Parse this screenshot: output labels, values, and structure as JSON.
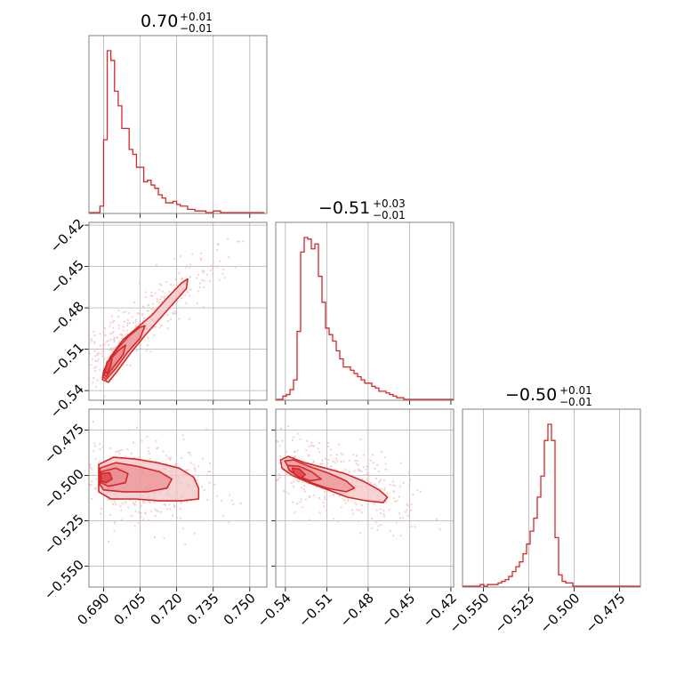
{
  "colors": {
    "series": "#d62728",
    "grid": "#b0b0b0",
    "frame": "#808080",
    "scatter": "#f2b9bb",
    "fill_light": "#f3c4c6",
    "fill_mid": "#e98a8e",
    "fill_dark": "#dc4b50"
  },
  "chart_data": {
    "type": "corner",
    "parameters": [
      {
        "title_value": "0.70",
        "title_plus": "+0.01",
        "title_minus": "−0.01",
        "range": [
          0.684,
          0.757
        ],
        "ticks": [
          0.69,
          0.705,
          0.72,
          0.735,
          0.75
        ],
        "tick_labels": [
          "0.690",
          "0.705",
          "0.720",
          "0.735",
          "0.750"
        ],
        "histogram": {
          "bin_start": 0.684,
          "bin_width": 0.0015,
          "counts": [
            0,
            0,
            0,
            4,
            45,
            100,
            94,
            75,
            66,
            52,
            52,
            39,
            36,
            28,
            28,
            19,
            20,
            17,
            15,
            11,
            9,
            6,
            6,
            7,
            5,
            4,
            4,
            2,
            2,
            1,
            1,
            1,
            0,
            0,
            1,
            1,
            0,
            0,
            0,
            0,
            0,
            0,
            0,
            0,
            0,
            0,
            0,
            0
          ]
        }
      },
      {
        "title_value": "−0.51",
        "title_plus": "+0.03",
        "title_minus": "−0.01",
        "range": [
          -0.547,
          -0.418
        ],
        "ticks": [
          -0.54,
          -0.51,
          -0.48,
          -0.45,
          -0.42
        ],
        "tick_labels": [
          "−0.54",
          "−0.51",
          "−0.48",
          "−0.45",
          "−0.42"
        ],
        "histogram": {
          "bin_start": -0.547,
          "bin_width": 0.00258,
          "counts": [
            0,
            0,
            2,
            3,
            6,
            12,
            42,
            91,
            100,
            99,
            93,
            96,
            76,
            60,
            44,
            40,
            36,
            30,
            25,
            20,
            20,
            18,
            16,
            14,
            12,
            10,
            10,
            8,
            7,
            5,
            5,
            4,
            3,
            2,
            1,
            1,
            0,
            0,
            0,
            0,
            0,
            0,
            0,
            0,
            0,
            0,
            0,
            0,
            0,
            0
          ]
        }
      },
      {
        "title_value": "−0.50",
        "title_plus": "+0.01",
        "title_minus": "−0.01",
        "range": [
          -0.5615,
          -0.4635
        ],
        "ticks": [
          -0.55,
          -0.525,
          -0.5,
          -0.475
        ],
        "tick_labels": [
          "−0.550",
          "−0.525",
          "−0.500",
          "−0.475"
        ],
        "histogram": {
          "bin_start": -0.5615,
          "bin_width": 0.00196,
          "counts": [
            0,
            0,
            0,
            0,
            0,
            1,
            0,
            1,
            1,
            1,
            2,
            3,
            4,
            6,
            9,
            12,
            15,
            20,
            26,
            34,
            42,
            55,
            68,
            90,
            100,
            90,
            30,
            7,
            3,
            2,
            2,
            0,
            0,
            0,
            0,
            0,
            0,
            0,
            0,
            0,
            0,
            0,
            0,
            0,
            0,
            0,
            0,
            0,
            0,
            0
          ]
        }
      }
    ],
    "pairs": [
      {
        "x_param": 0,
        "y_param": 1,
        "contours": [
          [
            [
              0.6895,
              -0.532
            ],
            [
              0.69,
              -0.526
            ],
            [
              0.693,
              -0.515
            ],
            [
              0.698,
              -0.503
            ],
            [
              0.704,
              -0.494
            ],
            [
              0.71,
              -0.485
            ],
            [
              0.716,
              -0.473
            ],
            [
              0.722,
              -0.462
            ],
            [
              0.7245,
              -0.459
            ],
            [
              0.724,
              -0.466
            ],
            [
              0.719,
              -0.476
            ],
            [
              0.713,
              -0.488
            ],
            [
              0.707,
              -0.5
            ],
            [
              0.701,
              -0.513
            ],
            [
              0.696,
              -0.525
            ],
            [
              0.692,
              -0.534
            ],
            [
              0.6895,
              -0.532
            ]
          ],
          [
            [
              0.6898,
              -0.53
            ],
            [
              0.691,
              -0.522
            ],
            [
              0.695,
              -0.511
            ],
            [
              0.7,
              -0.501
            ],
            [
              0.705,
              -0.494
            ],
            [
              0.707,
              -0.493
            ],
            [
              0.705,
              -0.502
            ],
            [
              0.7,
              -0.512
            ],
            [
              0.695,
              -0.524
            ],
            [
              0.691,
              -0.532
            ],
            [
              0.6898,
              -0.53
            ]
          ],
          [
            [
              0.6902,
              -0.528
            ],
            [
              0.692,
              -0.519
            ],
            [
              0.696,
              -0.511
            ],
            [
              0.699,
              -0.507
            ],
            [
              0.698,
              -0.514
            ],
            [
              0.694,
              -0.523
            ],
            [
              0.691,
              -0.53
            ],
            [
              0.6902,
              -0.528
            ]
          ],
          [
            [
              0.6905,
              -0.526
            ],
            [
              0.6915,
              -0.519
            ],
            [
              0.6935,
              -0.516
            ],
            [
              0.693,
              -0.522
            ],
            [
              0.6915,
              -0.528
            ],
            [
              0.6905,
              -0.526
            ]
          ]
        ]
      },
      {
        "x_param": 0,
        "y_param": 2,
        "contours": [
          [
            [
              0.688,
              -0.505
            ],
            [
              0.688,
              -0.494
            ],
            [
              0.694,
              -0.49
            ],
            [
              0.703,
              -0.491
            ],
            [
              0.712,
              -0.493
            ],
            [
              0.721,
              -0.496
            ],
            [
              0.727,
              -0.501
            ],
            [
              0.729,
              -0.507
            ],
            [
              0.729,
              -0.513
            ],
            [
              0.722,
              -0.514
            ],
            [
              0.713,
              -0.514
            ],
            [
              0.703,
              -0.513
            ],
            [
              0.693,
              -0.513
            ],
            [
              0.688,
              -0.509
            ],
            [
              0.688,
              -0.505
            ]
          ],
          [
            [
              0.6885,
              -0.505
            ],
            [
              0.6885,
              -0.496
            ],
            [
              0.695,
              -0.493
            ],
            [
              0.704,
              -0.495
            ],
            [
              0.713,
              -0.498
            ],
            [
              0.718,
              -0.502
            ],
            [
              0.716,
              -0.507
            ],
            [
              0.708,
              -0.509
            ],
            [
              0.698,
              -0.509
            ],
            [
              0.69,
              -0.508
            ],
            [
              0.6885,
              -0.505
            ]
          ],
          [
            [
              0.689,
              -0.504
            ],
            [
              0.689,
              -0.498
            ],
            [
              0.695,
              -0.496
            ],
            [
              0.7,
              -0.499
            ],
            [
              0.699,
              -0.504
            ],
            [
              0.692,
              -0.506
            ],
            [
              0.689,
              -0.504
            ]
          ],
          [
            [
              0.689,
              -0.503
            ],
            [
              0.689,
              -0.499
            ],
            [
              0.6925,
              -0.4985
            ],
            [
              0.6935,
              -0.502
            ],
            [
              0.691,
              -0.504
            ],
            [
              0.689,
              -0.503
            ]
          ]
        ]
      },
      {
        "x_param": 1,
        "y_param": 2,
        "contours": [
          [
            [
              -0.5435,
              -0.4915
            ],
            [
              -0.538,
              -0.4895
            ],
            [
              -0.526,
              -0.493
            ],
            [
              -0.511,
              -0.496
            ],
            [
              -0.497,
              -0.499
            ],
            [
              -0.484,
              -0.503
            ],
            [
              -0.472,
              -0.508
            ],
            [
              -0.466,
              -0.512
            ],
            [
              -0.469,
              -0.515
            ],
            [
              -0.481,
              -0.514
            ],
            [
              -0.495,
              -0.512
            ],
            [
              -0.509,
              -0.508
            ],
            [
              -0.523,
              -0.504
            ],
            [
              -0.535,
              -0.5
            ],
            [
              -0.5425,
              -0.496
            ],
            [
              -0.5435,
              -0.4915
            ]
          ],
          [
            [
              -0.5405,
              -0.492
            ],
            [
              -0.534,
              -0.4915
            ],
            [
              -0.523,
              -0.495
            ],
            [
              -0.508,
              -0.499
            ],
            [
              -0.496,
              -0.503
            ],
            [
              -0.49,
              -0.507
            ],
            [
              -0.496,
              -0.509
            ],
            [
              -0.51,
              -0.507
            ],
            [
              -0.525,
              -0.503
            ],
            [
              -0.536,
              -0.498
            ],
            [
              -0.5405,
              -0.492
            ]
          ],
          [
            [
              -0.5385,
              -0.4945
            ],
            [
              -0.53,
              -0.495
            ],
            [
              -0.521,
              -0.498
            ],
            [
              -0.514,
              -0.502
            ],
            [
              -0.522,
              -0.503
            ],
            [
              -0.532,
              -0.5
            ],
            [
              -0.5375,
              -0.497
            ],
            [
              -0.5385,
              -0.4945
            ]
          ],
          [
            [
              -0.535,
              -0.496
            ],
            [
              -0.53,
              -0.4965
            ],
            [
              -0.5255,
              -0.4995
            ],
            [
              -0.529,
              -0.5015
            ],
            [
              -0.534,
              -0.499
            ],
            [
              -0.535,
              -0.496
            ]
          ]
        ]
      }
    ],
    "grid": true
  }
}
